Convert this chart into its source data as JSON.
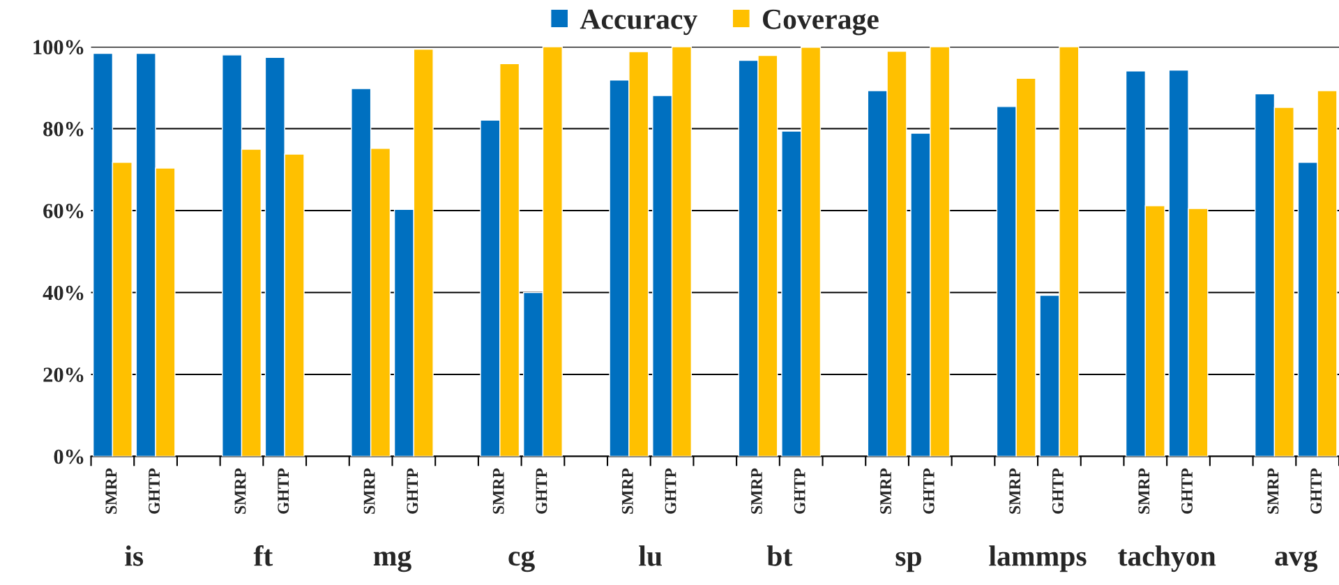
{
  "chart_data": {
    "type": "bar",
    "categories": [
      "SMRP",
      "GHTP",
      null,
      "SMRP",
      "GHTP",
      null,
      "SMRP",
      "GHTP",
      null,
      "SMRP",
      "GHTP",
      null,
      "SMRP",
      "GHTP",
      null,
      "SMRP",
      "GHTP",
      null,
      "SMRP",
      "GHTP",
      null,
      "SMRP",
      "GHTP",
      null,
      "SMRP",
      "GHTP",
      null,
      "SMRP",
      "GHTP"
    ],
    "series": [
      {
        "name": "Accuracy",
        "color": "#0070c0",
        "values": [
          98.4,
          98.4,
          null,
          98.0,
          97.4,
          null,
          89.8,
          60.3,
          null,
          82.1,
          40.0,
          null,
          91.9,
          88.1,
          null,
          96.7,
          79.4,
          null,
          89.3,
          78.9,
          null,
          85.4,
          39.3,
          null,
          94.1,
          94.3,
          null,
          88.5,
          71.8
        ]
      },
      {
        "name": "Coverage",
        "color": "#ffc000",
        "values": [
          71.8,
          70.4,
          null,
          75.0,
          73.8,
          null,
          75.2,
          99.4,
          null,
          95.9,
          100,
          null,
          98.8,
          100,
          null,
          97.9,
          99.9,
          null,
          98.9,
          100,
          null,
          92.3,
          100,
          null,
          61.2,
          60.5,
          null,
          85.2,
          89.3
        ]
      }
    ],
    "annotations": [
      "is",
      "ft",
      "mg",
      "cg",
      "lu",
      "bt",
      "sp",
      "lammps",
      "tachyon",
      "avg"
    ],
    "ylim": [
      0,
      100
    ],
    "yticks": [
      {
        "value": 0,
        "label": "0%"
      },
      {
        "value": 20,
        "label": "20%"
      },
      {
        "value": 40,
        "label": "40%"
      },
      {
        "value": 60,
        "label": "60%"
      },
      {
        "value": 80,
        "label": "80%"
      },
      {
        "value": 100,
        "label": "100%"
      }
    ],
    "grid": "y",
    "legend": "top"
  }
}
